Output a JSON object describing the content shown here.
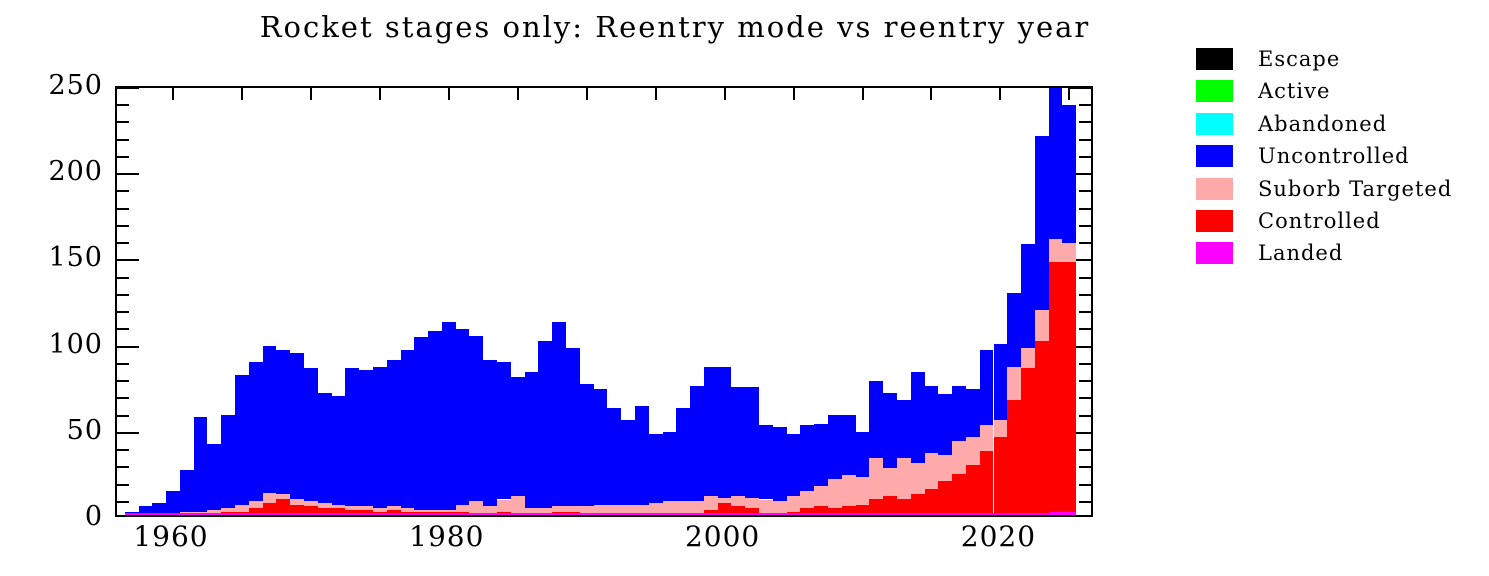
{
  "title": "Rocket stages only: Reentry mode vs reentry year",
  "legend": {
    "position": "right",
    "items": [
      {
        "label": "Escape",
        "color": "#000000"
      },
      {
        "label": "Active",
        "color": "#00ff00"
      },
      {
        "label": "Abandoned",
        "color": "#00ffff"
      },
      {
        "label": "Uncontrolled",
        "color": "#0000ff"
      },
      {
        "label": "Suborb Targeted",
        "color": "#ffaaaa"
      },
      {
        "label": "Controlled",
        "color": "#ff0000"
      },
      {
        "label": "Landed",
        "color": "#ff00ff"
      }
    ]
  },
  "axes": {
    "y": {
      "tick_labels": [
        "0",
        "50",
        "100",
        "150",
        "200",
        "250"
      ],
      "major_values": [
        0,
        50,
        100,
        150,
        200,
        250
      ],
      "minor_step": 10
    },
    "x": {
      "tick_labels": [
        "1960",
        "1980",
        "2000",
        "2020"
      ],
      "major_values": [
        1960,
        1980,
        2000,
        2020
      ],
      "minor_step": 5
    }
  },
  "chart_data": {
    "type": "bar",
    "stacked": true,
    "title": "Rocket stages only: Reentry mode vs reentry year",
    "xlabel": "",
    "ylabel": "",
    "ylim": [
      0,
      250
    ],
    "x_start_year": 1957,
    "x_end_year": 2025,
    "x_ticks": [
      1960,
      1980,
      2000,
      2020
    ],
    "y_ticks": [
      0,
      50,
      100,
      150,
      200,
      250
    ],
    "grid": false,
    "legend_position": "right",
    "note": "Stack order bottom-to-top: Landed, Controlled, Suborb Targeted, Uncontrolled. The 2024 bar (total 258) exceeds the axis maximum and is clipped at 250.",
    "zero_series": [
      "Escape",
      "Active",
      "Abandoned"
    ],
    "series": [
      {
        "name": "Landed",
        "color": "#ff00ff",
        "values": [
          0,
          0,
          0,
          0,
          0,
          0,
          0,
          0,
          0,
          0,
          0,
          0,
          0,
          0,
          0,
          0,
          0,
          0,
          0,
          0,
          0,
          0,
          0,
          0,
          0,
          0,
          0,
          0,
          0,
          0,
          0,
          0,
          0,
          0,
          0,
          0,
          0,
          0,
          0,
          0,
          0,
          0,
          0,
          1,
          0,
          0,
          0,
          0,
          0,
          0,
          0,
          0,
          0,
          0,
          0,
          0,
          0,
          0,
          0,
          0,
          0,
          0,
          0,
          0,
          0,
          0,
          1,
          2,
          2
        ]
      },
      {
        "name": "Controlled",
        "color": "#ff0000",
        "values": [
          0,
          0,
          0,
          0,
          0,
          0,
          1,
          2,
          2,
          4,
          7,
          9,
          6,
          5,
          4,
          4,
          3,
          3,
          2,
          3,
          2,
          2,
          2,
          2,
          2,
          1,
          1,
          2,
          1,
          1,
          0,
          2,
          2,
          0,
          0,
          1,
          0,
          0,
          0,
          0,
          0,
          0,
          3,
          6,
          5,
          4,
          1,
          1,
          2,
          4,
          5,
          4,
          5,
          6,
          9,
          11,
          9,
          12,
          15,
          20,
          24,
          29,
          37,
          45,
          67,
          85,
          100,
          145,
          145
        ]
      },
      {
        "name": "Suborb Targeted",
        "color": "#ffaaaa",
        "values": [
          0,
          1,
          1,
          1,
          2,
          2,
          2,
          2,
          4,
          4,
          6,
          3,
          3,
          3,
          3,
          2,
          2,
          2,
          2,
          2,
          2,
          1,
          1,
          1,
          4,
          7,
          4,
          7,
          10,
          3,
          4,
          3,
          3,
          5,
          6,
          5,
          6,
          6,
          7,
          8,
          8,
          8,
          8,
          3,
          6,
          6,
          8,
          7,
          9,
          10,
          12,
          17,
          18,
          16,
          24,
          16,
          24,
          18,
          21,
          15,
          19,
          16,
          15,
          10,
          19,
          12,
          18,
          13,
          11
        ]
      },
      {
        "name": "Uncontrolled",
        "color": "#0000ff",
        "values": [
          2,
          4,
          6,
          13,
          24,
          55,
          38,
          54,
          75,
          81,
          85,
          84,
          85,
          77,
          64,
          63,
          80,
          79,
          82,
          85,
          92,
          100,
          104,
          109,
          102,
          96,
          85,
          80,
          69,
          79,
          97,
          107,
          92,
          71,
          67,
          56,
          49,
          57,
          40,
          40,
          54,
          67,
          75,
          76,
          63,
          64,
          43,
          43,
          36,
          38,
          36,
          37,
          35,
          26,
          45,
          44,
          34,
          53,
          39,
          35,
          32,
          28,
          44,
          44,
          43,
          60,
          101,
          98,
          80
        ]
      }
    ]
  }
}
